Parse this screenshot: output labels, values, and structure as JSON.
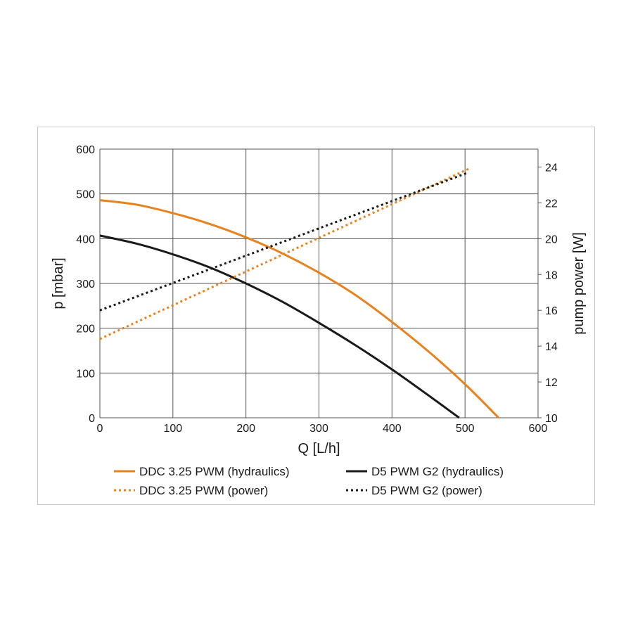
{
  "colors": {
    "orange": "#e8821e",
    "black": "#1a1a1a",
    "grid": "#555555"
  },
  "chart_data": {
    "type": "line",
    "xlabel": "Q [L/h]",
    "ylabel_left": "p [mbar]",
    "ylabel_right": "pump power [W]",
    "xlim": [
      0,
      600
    ],
    "ylim_left": [
      0,
      600
    ],
    "ylim_right": [
      10,
      25
    ],
    "x_ticks": [
      0,
      100,
      200,
      300,
      400,
      500,
      600
    ],
    "y_left_ticks": [
      0,
      100,
      200,
      300,
      400,
      500,
      600
    ],
    "y_right_ticks": [
      10,
      12,
      14,
      16,
      18,
      20,
      22,
      24
    ],
    "grid": true,
    "legend_position": "bottom",
    "series": [
      {
        "name": "DDC 3.25 PWM (hydraulics)",
        "axis": "left",
        "style": "solid",
        "color": "#e8821e",
        "x": [
          0,
          50,
          100,
          150,
          200,
          250,
          300,
          350,
          400,
          450,
          500,
          546
        ],
        "y": [
          486,
          476,
          457,
          433,
          403,
          367,
          324,
          274,
          214,
          148,
          75,
          0
        ]
      },
      {
        "name": "D5 PWM G2 (hydraulics)",
        "axis": "left",
        "style": "solid",
        "color": "#1a1a1a",
        "x": [
          0,
          50,
          100,
          150,
          200,
          250,
          300,
          350,
          400,
          450,
          492
        ],
        "y": [
          407,
          389,
          365,
          336,
          300,
          259,
          212,
          162,
          108,
          50,
          0
        ]
      },
      {
        "name": "DDC 3.25 PWM (power)",
        "axis": "right",
        "style": "dotted",
        "color": "#e8821e",
        "x": [
          0,
          505
        ],
        "y": [
          14.4,
          23.9
        ]
      },
      {
        "name": "D5 PWM G2 (power)",
        "axis": "right",
        "style": "dotted",
        "color": "#1a1a1a",
        "x": [
          0,
          505
        ],
        "y": [
          16.0,
          23.7
        ]
      }
    ]
  },
  "legend": [
    {
      "label": "DDC 3.25 PWM (hydraulics)",
      "color": "#e8821e",
      "style": "solid"
    },
    {
      "label": "D5 PWM G2 (hydraulics)",
      "color": "#1a1a1a",
      "style": "solid"
    },
    {
      "label": "DDC 3.25 PWM (power)",
      "color": "#e8821e",
      "style": "dotted"
    },
    {
      "label": "D5 PWM G2 (power)",
      "color": "#1a1a1a",
      "style": "dotted"
    }
  ]
}
